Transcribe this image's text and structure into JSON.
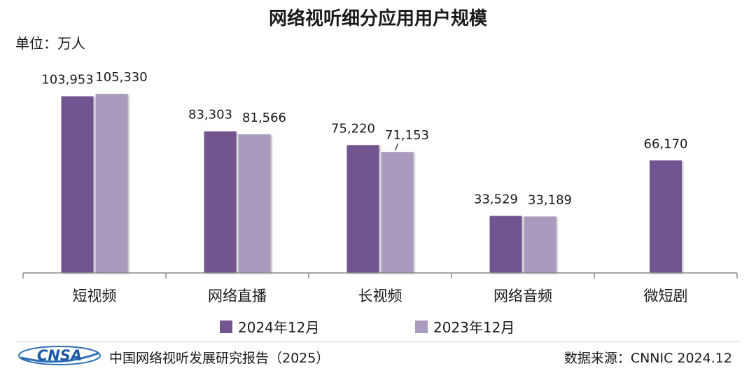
{
  "chart_data": {
    "type": "bar",
    "title": "网络视听细分应用用户规模",
    "unit_label": "单位：万人",
    "categories": [
      "短视频",
      "网络直播",
      "长视频",
      "网络音频",
      "微短剧"
    ],
    "series": [
      {
        "name": "2024年12月",
        "color": "#725590",
        "values": [
          103953,
          83303,
          75220,
          33529,
          66170
        ],
        "labels": [
          "103,953",
          "83,303",
          "75,220",
          "33,529",
          "66,170"
        ]
      },
      {
        "name": "2023年12月",
        "color": "#a99bbd",
        "values": [
          105330,
          81566,
          71153,
          33189,
          null
        ],
        "labels": [
          "105,330",
          "81,566",
          "71,153",
          "33,189",
          ""
        ]
      }
    ],
    "ylim": [
      0,
      112000
    ],
    "grid": false,
    "legend_position": "bottom"
  },
  "footer": {
    "logo_text": "CNSA",
    "report": "中国网络视听发展研究报告（2025）",
    "source": "数据来源：CNNIC 2024.12"
  }
}
